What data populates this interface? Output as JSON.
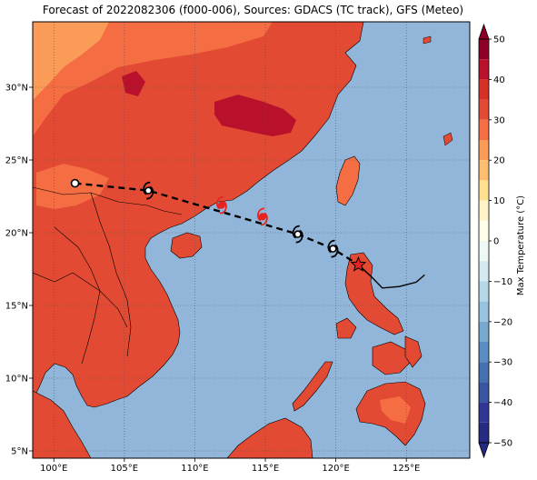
{
  "title": "Forecast of 2022082306 (f000-006), Sources: GDACS (TC track), GFS (Meteo)",
  "map": {
    "extent": {
      "lon": [
        98.5,
        129.5
      ],
      "lat": [
        4.5,
        34.5
      ]
    },
    "lon_ticks": [
      {
        "value": 100,
        "label": "100°E"
      },
      {
        "value": 105,
        "label": "105°E"
      },
      {
        "value": 110,
        "label": "110°E"
      },
      {
        "value": 115,
        "label": "115°E"
      },
      {
        "value": 120,
        "label": "120°E"
      },
      {
        "value": 125,
        "label": "125°E"
      }
    ],
    "lat_ticks": [
      {
        "value": 5,
        "label": "5°N"
      },
      {
        "value": 10,
        "label": "10°N"
      },
      {
        "value": 15,
        "label": "15°N"
      },
      {
        "value": 20,
        "label": "20°N"
      },
      {
        "value": 25,
        "label": "25°N"
      },
      {
        "value": 30,
        "label": "30°N"
      }
    ],
    "gridlines": true,
    "ocean_color": "#92b6d9"
  },
  "track": {
    "forecast_points": [
      {
        "lon": 101.5,
        "lat": 23.4,
        "symbol": "circle"
      },
      {
        "lon": 106.7,
        "lat": 22.9,
        "symbol": "cyclone"
      },
      {
        "lon": 117.3,
        "lat": 19.9,
        "symbol": "cyclone"
      },
      {
        "lon": 119.8,
        "lat": 18.9,
        "symbol": "cyclone"
      },
      {
        "lon": 121.6,
        "lat": 17.8,
        "symbol": "star"
      }
    ],
    "past_track": [
      {
        "lon": 121.6,
        "lat": 17.8
      },
      {
        "lon": 122.6,
        "lat": 16.9
      },
      {
        "lon": 123.3,
        "lat": 16.2
      },
      {
        "lon": 124.5,
        "lat": 16.3
      },
      {
        "lon": 125.7,
        "lat": 16.6
      },
      {
        "lon": 126.3,
        "lat": 17.1
      }
    ],
    "current_positions": [
      {
        "lon": 111.9,
        "lat": 21.9
      },
      {
        "lon": 114.8,
        "lat": 21.1
      }
    ],
    "track_color": "#000000",
    "current_color": "#e8231f"
  },
  "colorbar": {
    "label": "Max Temperature (°C)",
    "ticks": [
      {
        "value": 50,
        "label": "50"
      },
      {
        "value": 40,
        "label": "40"
      },
      {
        "value": 30,
        "label": "30"
      },
      {
        "value": 20,
        "label": "20"
      },
      {
        "value": 10,
        "label": "10"
      },
      {
        "value": 0,
        "label": "0"
      },
      {
        "value": -10,
        "label": "−10"
      },
      {
        "value": -20,
        "label": "−20"
      },
      {
        "value": -30,
        "label": "−30"
      },
      {
        "value": -40,
        "label": "−40"
      },
      {
        "value": -50,
        "label": "−50"
      }
    ],
    "levels": [
      {
        "from": 45,
        "to": 50,
        "color": "#8f0026"
      },
      {
        "from": 40,
        "to": 45,
        "color": "#b9112b"
      },
      {
        "from": 35,
        "to": 40,
        "color": "#d73027"
      },
      {
        "from": 30,
        "to": 35,
        "color": "#e34a33"
      },
      {
        "from": 25,
        "to": 30,
        "color": "#f46d43"
      },
      {
        "from": 20,
        "to": 25,
        "color": "#fb9b58"
      },
      {
        "from": 15,
        "to": 20,
        "color": "#fdbf6f"
      },
      {
        "from": 10,
        "to": 15,
        "color": "#fee090"
      },
      {
        "from": 5,
        "to": 10,
        "color": "#fff4c8"
      },
      {
        "from": 0,
        "to": 5,
        "color": "#ffffe8"
      },
      {
        "from": -5,
        "to": 0,
        "color": "#eef8f4"
      },
      {
        "from": -10,
        "to": -5,
        "color": "#d4eaf0"
      },
      {
        "from": -15,
        "to": -10,
        "color": "#b6d7e8"
      },
      {
        "from": -20,
        "to": -15,
        "color": "#98c3de"
      },
      {
        "from": -25,
        "to": -20,
        "color": "#78aacf"
      },
      {
        "from": -30,
        "to": -25,
        "color": "#5a8dc1"
      },
      {
        "from": -35,
        "to": -30,
        "color": "#4571b0"
      },
      {
        "from": -40,
        "to": -35,
        "color": "#3a55a0"
      },
      {
        "from": -45,
        "to": -40,
        "color": "#313695"
      },
      {
        "from": -50,
        "to": -45,
        "color": "#262a80"
      }
    ]
  }
}
